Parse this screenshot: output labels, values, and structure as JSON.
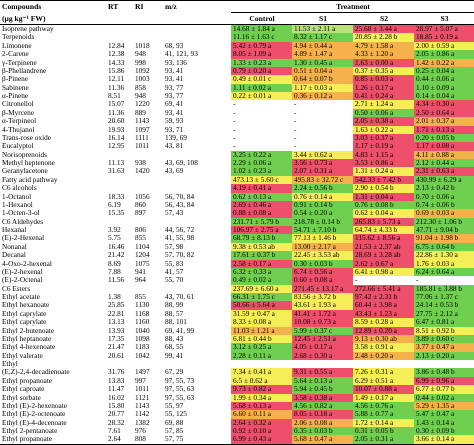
{
  "table": {
    "header": {
      "row1": [
        "Compounds",
        "RT",
        "RI",
        "m/z",
        "Treatment"
      ],
      "row2": [
        "(μg kg⁻¹ FW)",
        "Control",
        "S1",
        "S2",
        "S3"
      ]
    },
    "rows": [
      [
        "Isoprene pathway",
        null,
        null,
        null,
        "14.68 ± 1.84 a",
        "11.53 ± 2.11 a",
        "25.68 ± 3.44 a",
        "28.97 ± 5.07 a"
      ],
      [
        "Terpenoids",
        null,
        null,
        null,
        "11.16 ± 1.63 c",
        "8.32 ± 1.17 c",
        "20.85 ± 2.28 b",
        "18.85 ± 0.19 a"
      ],
      [
        "Limonene",
        "12.84",
        "1018",
        "68, 93",
        "5.42 ± 0.79 a",
        "4.94 ± 0.44 a",
        "4.79 ± 1.58 a",
        "2.00 ± 0.59 a"
      ],
      [
        "2-Carene",
        "12.38",
        "948",
        "41, 121, 93",
        "8.05 ± 1.09 a",
        "4.89 ± 1.47 a",
        "4.33 ± 1.20 a",
        "2.05 ± 0.86 a"
      ],
      [
        "γ-Terpinene",
        "14.33",
        "998",
        "93, 136",
        "1.33 ± 0.23 a",
        "1.30 ± 0.45 a",
        "1.63 ± 0.00 a",
        "1.42 ± 0.22 a"
      ],
      [
        "β-Phellandrene",
        "15.86",
        "1092",
        "93, 41",
        "0.79 ± 0.20 a",
        "0.51 ± 0.04 a",
        "0.37 ± 0.35 a",
        "0.25 ± 0.04 a"
      ],
      [
        "β-Pinene",
        "12.11",
        "1003",
        "93, 41",
        "0.49 ± 0.01 c",
        "0.64 ± 0.07 b",
        "0.85 ± 0.03 a",
        "0.44 ± 0.06 a"
      ],
      [
        "Sabinene",
        "11.36",
        "858",
        "93, 77",
        "1.11 ± 0.02 a",
        "1.17 ± 0.03 a",
        "1.26 ± 0.17 a",
        "1.10 ± 0.09 a"
      ],
      [
        "α-Pinene",
        "8.51",
        "948",
        "93, 77",
        "0.22 ± 0.01 a",
        "0.36 ± 0.12 a",
        "0.41 ± 0.24 a",
        "0.14 ± 0.04 a"
      ],
      [
        "Citronellol",
        "15.07",
        "1220",
        "69, 41",
        "-",
        "-",
        "2.71 ± 1.24 a",
        "4.34 ± 0.30 a"
      ],
      [
        "β-Myrcene",
        "11.36",
        "889",
        "93, 41",
        "-",
        "-",
        "0.50 ± 0.06 a",
        "2.50 ± 0.64 a"
      ],
      [
        "α-Terpineol",
        "20.60",
        "1143",
        "59, 93",
        "-",
        "-",
        "2.05 ± 0.38 a",
        "2.01 ± 0.37 a"
      ],
      [
        "4-Thujanol",
        "19.93",
        "1097",
        "93, 71",
        "-",
        "-",
        "1.63 ± 0.22 a",
        "1.71 ± 0.13 a"
      ],
      [
        "Trans-rose oxide",
        "16.14",
        "1111",
        "139, 69",
        "-",
        "-",
        "3.03 ± 0.37 a",
        "0.20 ± 0.05 b"
      ],
      [
        "Eucalyptol",
        "12.95",
        "1011",
        "43, 81",
        "-",
        "-",
        "1.17 ± 0.19 a",
        "1.17 ± 0.08 a"
      ],
      [
        "Norisoprenoids",
        null,
        null,
        null,
        "3.25 ± 0.22 a",
        "3.44 ± 0.62 a",
        "4.83 ± 1.15 a",
        "4.11 ± 0.88 a"
      ],
      [
        "Methyl heptenone",
        "11.13",
        "938",
        "43, 69, 108",
        "2.29 ± 0.06 a",
        "3.56 ± 0.73 a",
        "3.53 ± 0.86 a",
        "2.12 ± 0.44 a"
      ],
      [
        "Geranylacetone",
        "31.63",
        "1420",
        "43, 69",
        "1.02 ± 0.23 a",
        "2.07 ± 0.31 a",
        "1.31 ± 0.24 a",
        "2.31 ± 0.63 a"
      ],
      [
        "Fatty acid pathway",
        null,
        null,
        null,
        "473.13 ± 5.60 c",
        "495.83 ± 32.72 c",
        "542.33 ± 7.42 b",
        "430.99 ± 6.29 a"
      ],
      [
        "C6 alcohols",
        null,
        null,
        null,
        "4.19 ± 0.41 a",
        "2.24 ± 0.56 b",
        "2.90 ± 0.54 b",
        "2.13 ± 0.42 b"
      ],
      [
        "1-Octanol",
        "18.33",
        "1056",
        "56, 70, 84",
        "0.62 ± 0.13 a",
        "0.76 ± 0.14 a",
        "1.31 ± 0.04 a",
        "0.70 ± 0.06 a"
      ],
      [
        "1-Hexanol",
        "6.19",
        "860",
        "56, 43, 84",
        "2.69 ± 0.46 a",
        "0.91 ± 0.14 b",
        "0.76 ± 0.08 b",
        "0.74 ± 0.06 b"
      ],
      [
        "1-Octen-3-ol",
        "15.35",
        "897",
        "57, 43",
        "0.88 ± 0.08 a",
        "0.54 ± 0.20 a",
        "0.62 ± 0.04 a",
        "0.69 ± 0.03 a"
      ],
      [
        "C6 Aldehydes",
        null,
        null,
        null,
        "231.71 ± 5.79 b",
        "218.78 ± 0.14 b",
        "265.83 ± 5.73 a",
        "212.30 ± 1.06 b"
      ],
      [
        "Hexanal",
        "3.92",
        "806",
        "44, 56, 72",
        "106.97 ± 2.75 a",
        "54.71 ± 7.10 b",
        "64.74 ± 4.33 b",
        "47.71 ± 9.04 b"
      ],
      [
        "(E)-2-Hexenal",
        "5.75",
        "855",
        "41, 55, 98",
        "68.79 ± 8.13 b",
        "77.13 ± 1.46 b",
        "115.62 ± 8.56 a",
        "91.04 ± 1.98 b"
      ],
      [
        "Nonanal",
        "16.46",
        "1104",
        "57, 98",
        "9.38 ± 0.53 ab",
        "13.00 ± 2.17 a",
        "21.53 ± 2.37 ab",
        "6.75 ± 0.64 b"
      ],
      [
        "Decanal",
        "21.42",
        "1204",
        "57, 70, 82",
        "17.61 ± 0.37 b",
        "22.45 ± 3.53 ab",
        "28.69 ± 3.28 ab",
        "22.86 ± 1.30 a"
      ],
      [
        "4-Oxo-2-hexenal",
        "8.69",
        "1075",
        "55, 83",
        "2.58 ± 0.17 a",
        "0.30 ± 0.03 b",
        "2.62 ± 0.67 a",
        "1.76 ± 0.03 a"
      ],
      [
        "(E)-2-hexenal",
        "7.88",
        "941",
        "41, 57",
        "6.32 ± 0.33 a",
        "6.74 ± 0.56 a",
        "6.41 ± 0.98 a",
        "6.24 ± 0.64 a"
      ],
      [
        "(E)-2-Octenal",
        "11.56",
        "964",
        "55, 70",
        "0.49 ± 0.02 a",
        "0.60 ± 0.08 a",
        "-",
        "-"
      ],
      [
        "C6 Esters",
        null,
        null,
        null,
        "237.69 ± 6.60 a",
        "271.45 ± 13.17 a",
        "272.66 ± 5.41 a",
        "185.81 ± 3.88 b"
      ],
      [
        "Ethyl acetate",
        "1.38",
        "855",
        "43, 70, 61",
        "66.31 ± 1.75 c",
        "83.56 ± 3.72 b",
        "97.42 ± 2.31 b",
        "77.06 ± 1.37 c"
      ],
      [
        "Ethyl hexanoate",
        "25.85",
        "1130",
        "88, 99",
        "50.66 ± 5.64 a",
        "43.61 ± 1.93 a",
        "60.44 ± 3.98 a",
        "24.14 ± 0.53 b"
      ],
      [
        "Ethyl caprylate",
        "22.81",
        "1168",
        "88, 57",
        "31.59 ± 0.47 a",
        "41.41 ± 1.72 a",
        "43.43 ± 1.23 a",
        "27.75 ± 2.12 a"
      ],
      [
        "Ethyl caprylate",
        "13.13",
        "1160",
        "88, 101",
        "8.33 ± 0.08 a",
        "10.08 ± 0.73 a",
        "8.59 ± 0.28 a",
        "6.47 ± 0.81 a"
      ],
      [
        "Ethyl 2-butenoate",
        "13.93",
        "1040",
        "69, 41, 99",
        "11.03 ± 1.21 a",
        "5.99 ± 0.37 c",
        "12.89 ± 0.20 a",
        "8.51 ± 0.92 b"
      ],
      [
        "Ethyl heptanoate",
        "17.35",
        "1098",
        "88, 43",
        "6.81 ± 0.44 b",
        "12.45 ± 2.51 a",
        "9.13 ± 0.30 ab",
        "3.89 ± 0.60 c"
      ],
      [
        "Ethyl 4-hexenoate",
        "21.47",
        "1183",
        "68, 55",
        "3.12 ± 0.25 a",
        "4.05 ± 0.17 a",
        "3.58 ± 0.91 a",
        "3.77 ± 0.47 a"
      ],
      [
        "Ethyl valerate",
        "20.61",
        "1042",
        "99, 41",
        "2.28 ± 0.11 a",
        "2.68 ± 0.30 a",
        "2.48 ± 0.20 a",
        "2.13 ± 0.20 a"
      ],
      [
        "Ethyl",
        null,
        null,
        null,
        null,
        null,
        null,
        null
      ],
      [
        "(E,Z)-2,4-decadienoate",
        "31.76",
        "1497",
        "67, 29",
        "7.34 ± 0.41 a",
        "9.31 ± 0.55 a",
        "7.26 ± 0.31 a",
        "3.86 ± 0.48 b"
      ],
      [
        "Ethyl propanoate",
        "13.83",
        "997",
        "97, 55, 73",
        "6.5 ± 0.62 a",
        "5.64 ± 0.13 a",
        "6.29 ± 0.51 a",
        "6.99 ± 0.96 a"
      ],
      [
        "Ethyl caproate",
        "11.47",
        "1011",
        "97, 55, 63",
        "9.73 ± 0.82 a",
        "5.94 ± 0.45 b",
        "10.07 ± 0.88 a",
        "6.77 ± 0.77 b"
      ],
      [
        "Ethyl sorbate",
        "16.02",
        "1121",
        "97, 55, 63",
        "1.99 ± 0.34 a",
        "3.58 ± 0.38 a",
        "1.49 ± 0.17 a",
        "0.44 ± 0.02 a"
      ],
      [
        "Ethyl (E)-2-hexenoate",
        "15.80",
        "1143",
        "55, 97",
        "5.68 ± 0.13 a",
        "4.56 ± 0.82 a",
        "4.56 ± 0.76 a",
        "5.29 ± 1.35 a"
      ],
      [
        "Ethyl (E)-2-octenoate",
        "20.77",
        "1142",
        "55, 125",
        "6.60 ± 0.11 a",
        "8.05 ± 0.18 a",
        "5.88 ± 0.77 a",
        "5.47 ± 0.47 a"
      ],
      [
        "Ethyl (E)-4-decenoate",
        "28.32",
        "1382",
        "69, 88",
        "2.64 ± 0.32 a",
        "2.06 ± 0.08 a",
        "1.72 ± 0.14 a",
        "1.43 ± 0.14 a"
      ],
      [
        "Ethyl 2-pentanoate",
        "7.61",
        "976",
        "57, 85",
        "0.92 ± 0.10 a",
        "0.35 ± 0.03 b",
        "0.31 ± 0.05 b",
        "0.30 ± 0.09 b"
      ],
      [
        "Ethyl propanoate",
        "2.64",
        "808",
        "57, 75",
        "6.99 ± 0.43 a",
        "5.68 ± 0.47 a",
        "2.05 ± 0.31 a",
        "3.66 ± 0.14 a"
      ]
    ],
    "colors": [
      [
        "#6fcf4e",
        "#b9e27a",
        "#ee4f6a",
        "#ee4f6a"
      ],
      [
        "#6fcf4e",
        "#6fcf4e",
        "#f5ee56",
        "#ee4f6a"
      ],
      [
        "#ee4f6a",
        "#f6b24a",
        "#f6b24a",
        "#f5ee56"
      ],
      [
        "#ee4f6a",
        "#f6b24a",
        "#f6b24a",
        "#6fcf4e"
      ],
      [
        "#6fcf4e",
        "#6fcf4e",
        "#ee4f6a",
        "#f6b24a"
      ],
      [
        "#ee4f6a",
        "#f6b24a",
        "#f5ee56",
        "#6fcf4e"
      ],
      [
        "#f5ee56",
        "#f6b24a",
        "#ee4f6a",
        "#6fcf4e"
      ],
      [
        "#6fcf4e",
        "#f5ee56",
        "#ee4f6a",
        "#6fcf4e"
      ],
      [
        "#f5ee56",
        "#f6b24a",
        "#ee4f6a",
        "#6fcf4e"
      ],
      [
        null,
        null,
        "#f5ee56",
        "#ee4f6a"
      ],
      [
        null,
        null,
        "#6fcf4e",
        "#ee4f6a"
      ],
      [
        null,
        null,
        "#ee4f6a",
        "#f6b24a"
      ],
      [
        null,
        null,
        "#f5ee56",
        "#ee4f6a"
      ],
      [
        null,
        null,
        "#ee4f6a",
        "#6fcf4e"
      ],
      [
        null,
        null,
        "#ee4f6a",
        "#ee4f6a"
      ],
      [
        "#6fcf4e",
        "#f5ee56",
        "#ee4f6a",
        "#f6b24a"
      ],
      [
        "#6fcf4e",
        "#ee4f6a",
        "#ee4f6a",
        "#6fcf4e"
      ],
      [
        "#6fcf4e",
        "#ee4f6a",
        "#f5ee56",
        "#ee4f6a"
      ],
      [
        "#f5ee56",
        "#f6b24a",
        "#ee4f6a",
        "#6fcf4e"
      ],
      [
        "#ee4f6a",
        "#6fcf4e",
        "#f5ee56",
        "#6fcf4e"
      ],
      [
        "#6fcf4e",
        "#f5ee56",
        "#ee4f6a",
        "#6fcf4e"
      ],
      [
        "#ee4f6a",
        "#6fcf4e",
        "#6fcf4e",
        "#6fcf4e"
      ],
      [
        "#ee4f6a",
        "#6fcf4e",
        "#f5ee56",
        "#f6b24a"
      ],
      [
        "#6fcf4e",
        "#6fcf4e",
        "#ee4f6a",
        "#6fcf4e"
      ],
      [
        "#ee4f6a",
        "#6fcf4e",
        "#f5ee56",
        "#6fcf4e"
      ],
      [
        "#6fcf4e",
        "#f5ee56",
        "#ee4f6a",
        "#f6b24a"
      ],
      [
        "#f5ee56",
        "#f6b24a",
        "#ee4f6a",
        "#6fcf4e"
      ],
      [
        "#6fcf4e",
        "#f5ee56",
        "#ee4f6a",
        "#f5ee56"
      ],
      [
        "#ee4f6a",
        "#6fcf4e",
        "#ee4f6a",
        "#f5ee56"
      ],
      [
        "#6fcf4e",
        "#ee4f6a",
        "#f5ee56",
        "#6fcf4e"
      ],
      [
        "#6fcf4e",
        "#ee4f6a",
        null,
        null
      ],
      [
        "#f5ee56",
        "#ee4f6a",
        "#ee4f6a",
        "#6fcf4e"
      ],
      [
        "#6fcf4e",
        "#f5ee56",
        "#ee4f6a",
        "#6fcf4e"
      ],
      [
        "#ee4f6a",
        "#f5ee56",
        "#ee4f6a",
        "#6fcf4e"
      ],
      [
        "#f5ee56",
        "#ee4f6a",
        "#ee4f6a",
        "#6fcf4e"
      ],
      [
        "#f5ee56",
        "#ee4f6a",
        "#f5ee56",
        "#6fcf4e"
      ],
      [
        "#f6b24a",
        "#6fcf4e",
        "#ee4f6a",
        "#f5ee56"
      ],
      [
        "#f5ee56",
        "#ee4f6a",
        "#f6b24a",
        "#6fcf4e"
      ],
      [
        "#6fcf4e",
        "#ee4f6a",
        "#f5ee56",
        "#f6b24a"
      ],
      [
        "#6fcf4e",
        "#ee4f6a",
        "#f6b24a",
        "#6fcf4e"
      ],
      [
        null,
        null,
        null,
        null
      ],
      [
        "#f5ee56",
        "#ee4f6a",
        "#f5ee56",
        "#6fcf4e"
      ],
      [
        "#f5ee56",
        "#6fcf4e",
        "#f5ee56",
        "#ee4f6a"
      ],
      [
        "#ee4f6a",
        "#6fcf4e",
        "#ee4f6a",
        "#f5ee56"
      ],
      [
        "#f5ee56",
        "#ee4f6a",
        "#f5ee56",
        "#6fcf4e"
      ],
      [
        "#ee4f6a",
        "#6fcf4e",
        "#6fcf4e",
        "#f6b24a"
      ],
      [
        "#f6b24a",
        "#ee4f6a",
        "#6fcf4e",
        "#6fcf4e"
      ],
      [
        "#ee4f6a",
        "#f6b24a",
        "#f5ee56",
        "#6fcf4e"
      ],
      [
        "#ee4f6a",
        "#6fcf4e",
        "#6fcf4e",
        "#6fcf4e"
      ],
      [
        "#ee4f6a",
        "#f6b24a",
        "#6fcf4e",
        "#f5ee56"
      ]
    ]
  }
}
